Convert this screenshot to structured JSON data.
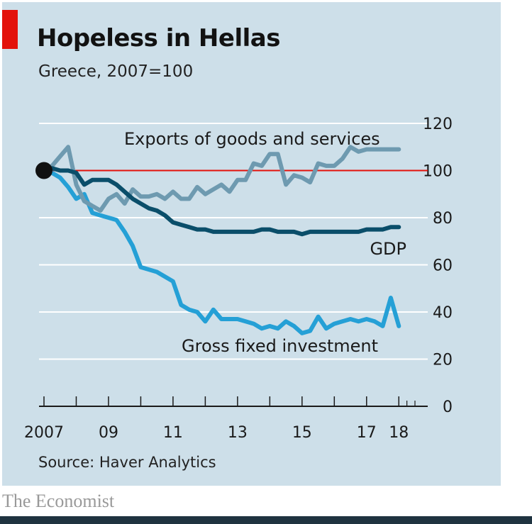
{
  "brand": "The Economist",
  "colors": {
    "background": "#cddfe9",
    "reference_line": "#e3120b",
    "exports": "#6e9ab0",
    "gdp": "#0a4e6a",
    "investment": "#25a0d6"
  },
  "chart_data": {
    "type": "line",
    "title": "Hopeless in Hellas",
    "subtitle": "Greece, 2007=100",
    "source": "Source: Haver Analytics",
    "xlabel": "",
    "ylabel": "",
    "xlim": [
      2007.0,
      2018.5
    ],
    "ylim": [
      0,
      120
    ],
    "y_ticks": [
      0,
      20,
      40,
      60,
      80,
      100,
      120
    ],
    "y_axis_side": "right",
    "x_tick_labels": [
      {
        "x": 2007,
        "label": "2007"
      },
      {
        "x": 2009,
        "label": "09"
      },
      {
        "x": 2011,
        "label": "11"
      },
      {
        "x": 2013,
        "label": "13"
      },
      {
        "x": 2015,
        "label": "15"
      },
      {
        "x": 2017,
        "label": "17"
      },
      {
        "x": 2018,
        "label": "18"
      }
    ],
    "x_ticks": [
      2007,
      2008,
      2009,
      2010,
      2011,
      2012,
      2013,
      2014,
      2015,
      2016,
      2017,
      2018
    ],
    "reference_line": 100,
    "grid": true,
    "series": [
      {
        "name": "Exports of goods and services",
        "label_position": "top",
        "x": [
          2007.0,
          2007.25,
          2007.5,
          2007.75,
          2008.0,
          2008.25,
          2008.5,
          2008.75,
          2009.0,
          2009.25,
          2009.5,
          2009.75,
          2010.0,
          2010.25,
          2010.5,
          2010.75,
          2011.0,
          2011.25,
          2011.5,
          2011.75,
          2012.0,
          2012.25,
          2012.5,
          2012.75,
          2013.0,
          2013.25,
          2013.5,
          2013.75,
          2014.0,
          2014.25,
          2014.5,
          2014.75,
          2015.0,
          2015.25,
          2015.5,
          2015.75,
          2016.0,
          2016.25,
          2016.5,
          2016.75,
          2017.0,
          2017.25,
          2017.5,
          2017.75,
          2018.0
        ],
        "values": [
          100,
          102,
          106,
          110,
          94,
          87,
          85,
          83,
          88,
          90,
          86,
          92,
          89,
          89,
          90,
          88,
          91,
          88,
          88,
          93,
          90,
          92,
          94,
          91,
          96,
          96,
          103,
          102,
          107,
          107,
          94,
          98,
          97,
          95,
          103,
          102,
          102,
          105,
          110,
          108,
          109,
          109,
          109,
          109,
          109
        ]
      },
      {
        "name": "GDP",
        "label_position": "right",
        "x": [
          2007.0,
          2007.25,
          2007.5,
          2007.75,
          2008.0,
          2008.25,
          2008.5,
          2008.75,
          2009.0,
          2009.25,
          2009.5,
          2009.75,
          2010.0,
          2010.25,
          2010.5,
          2010.75,
          2011.0,
          2011.25,
          2011.5,
          2011.75,
          2012.0,
          2012.25,
          2012.5,
          2012.75,
          2013.0,
          2013.25,
          2013.5,
          2013.75,
          2014.0,
          2014.25,
          2014.5,
          2014.75,
          2015.0,
          2015.25,
          2015.5,
          2015.75,
          2016.0,
          2016.25,
          2016.5,
          2016.75,
          2017.0,
          2017.25,
          2017.5,
          2017.75,
          2018.0
        ],
        "values": [
          100,
          101,
          100,
          100,
          99,
          94,
          96,
          96,
          96,
          94,
          91,
          88,
          86,
          84,
          83,
          81,
          78,
          77,
          76,
          75,
          75,
          74,
          74,
          74,
          74,
          74,
          74,
          75,
          75,
          74,
          74,
          74,
          73,
          74,
          74,
          74,
          74,
          74,
          74,
          74,
          75,
          75,
          75,
          76,
          76
        ]
      },
      {
        "name": "Gross fixed investment",
        "label_position": "bottom",
        "x": [
          2007.0,
          2007.25,
          2007.5,
          2007.75,
          2008.0,
          2008.25,
          2008.5,
          2008.75,
          2009.0,
          2009.25,
          2009.5,
          2009.75,
          2010.0,
          2010.25,
          2010.5,
          2010.75,
          2011.0,
          2011.25,
          2011.5,
          2011.75,
          2012.0,
          2012.25,
          2012.5,
          2012.75,
          2013.0,
          2013.25,
          2013.5,
          2013.75,
          2014.0,
          2014.25,
          2014.5,
          2014.75,
          2015.0,
          2015.25,
          2015.5,
          2015.75,
          2016.0,
          2016.25,
          2016.5,
          2016.75,
          2017.0,
          2017.25,
          2017.5,
          2017.75,
          2018.0
        ],
        "values": [
          100,
          99,
          97,
          93,
          88,
          90,
          82,
          81,
          80,
          79,
          74,
          68,
          59,
          58,
          57,
          55,
          53,
          43,
          41,
          40,
          36,
          41,
          37,
          37,
          37,
          36,
          35,
          33,
          34,
          33,
          36,
          34,
          31,
          32,
          38,
          33,
          35,
          36,
          37,
          36,
          37,
          36,
          34,
          46,
          34
        ]
      }
    ]
  }
}
